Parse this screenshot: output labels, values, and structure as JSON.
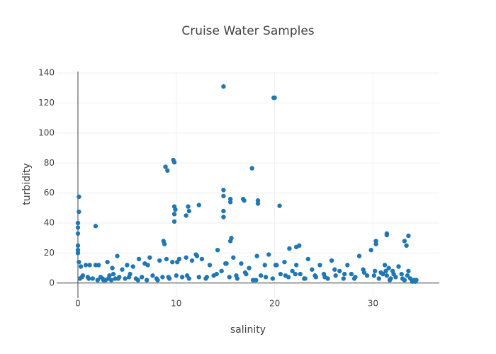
{
  "chart_data": {
    "type": "scatter",
    "title": "Cruise Water Samples",
    "x_label": "salinity",
    "y_label": "turbidity",
    "color": "#1f77b4",
    "grid": true,
    "xlim": [
      -2.16,
      36.74
    ],
    "ylim": [
      -10,
      141
    ],
    "xticks": [
      0,
      10,
      20,
      30
    ],
    "yticks": [
      0,
      20,
      40,
      60,
      80,
      100,
      120,
      140
    ],
    "x": [
      14.8,
      19.9,
      20.0,
      9.7,
      9.8,
      8.9,
      9.1,
      17.7,
      0.1,
      0.1,
      0.0,
      0.0,
      0.0,
      1.8,
      14.8,
      14.8,
      15.5,
      15.5,
      16.8,
      16.9,
      18.3,
      18.3,
      20.5,
      9.8,
      9.9,
      9.8,
      9.8,
      11.2,
      11.3,
      11.0,
      12.3,
      14.8,
      14.8,
      31.4,
      31.4,
      33.6,
      33.2,
      33.4,
      30.3,
      30.3,
      15.6,
      15.5,
      22.5,
      22.2,
      21.5,
      8.7,
      8.8,
      0.0,
      0.0,
      0.0,
      0.1,
      0.2,
      0.3,
      0.5,
      0.8,
      1,
      1.2,
      1.5,
      1.8,
      2,
      2.3,
      2.5,
      2.8,
      3,
      3.2,
      3.4,
      3.6,
      3.8,
      4,
      4.2,
      4.5,
      4.8,
      5,
      5.3,
      5.6,
      5.9,
      6.2,
      6.5,
      6.8,
      7,
      7.3,
      7.6,
      8,
      8.3,
      8.6,
      9,
      9.3,
      9.6,
      10,
      10.3,
      10.6,
      11,
      11.3,
      11.6,
      12,
      12.3,
      12.6,
      13,
      13.4,
      13.8,
      14.2,
      14.6,
      15,
      15.4,
      15.8,
      16.2,
      16.6,
      17,
      17.4,
      17.8,
      18.2,
      18.6,
      19,
      19.4,
      19.8,
      20.2,
      20.6,
      21,
      21.4,
      21.8,
      22.2,
      22.6,
      23,
      23.4,
      23.8,
      24.2,
      24.6,
      25,
      25.4,
      25.8,
      26.2,
      26.6,
      27,
      27.4,
      27.8,
      28.2,
      28.6,
      29,
      29.4,
      29.8,
      30.2,
      30.6,
      31,
      31.2,
      31.4,
      31.6,
      31.8,
      32,
      32.3,
      32.6,
      32.9,
      33.2,
      33.5,
      33.8,
      34,
      34.2,
      34.4,
      0.4,
      1.1,
      2.1,
      2.6,
      3.1,
      3.5,
      4.1,
      5.2,
      6.1,
      7.1,
      8.1,
      9.2,
      10.1,
      11.1,
      12.1,
      13.1,
      14.1,
      15.1,
      16.1,
      17.1,
      18.1,
      19.1,
      20.1,
      21.1,
      22.1,
      23.1,
      24.1,
      25.1,
      26.1,
      27.1,
      28.1,
      29.1,
      30.1,
      30.8,
      31.3,
      31.7,
      32.1,
      33,
      33.6,
      34.3
    ],
    "y": [
      131,
      123.5,
      123.5,
      82,
      80.5,
      77.5,
      75,
      76.5,
      57.5,
      47.5,
      40,
      37,
      33,
      38,
      62,
      58,
      56,
      54,
      56,
      55,
      55,
      53,
      51.5,
      51,
      49,
      46,
      41,
      51,
      48,
      45,
      52,
      48,
      44,
      33,
      32,
      31.5,
      28,
      25,
      28,
      26,
      30,
      28,
      25,
      24,
      23,
      28,
      26,
      25,
      22,
      20,
      14,
      3,
      11,
      5,
      12,
      4,
      12,
      3,
      12,
      2,
      4,
      3,
      2,
      14,
      5,
      2,
      6,
      3,
      18,
      4,
      9,
      3,
      12,
      6,
      11,
      3,
      16,
      4,
      13,
      2,
      17,
      5,
      3,
      15,
      4,
      16,
      3,
      14,
      5,
      16,
      4,
      17,
      3,
      15,
      19,
      4,
      16,
      3,
      12,
      5,
      22,
      8,
      13,
      4,
      17,
      3,
      13,
      7,
      10,
      2,
      18,
      5,
      12,
      19,
      3,
      12,
      6,
      14,
      4,
      8,
      12,
      6,
      3,
      16,
      9,
      4,
      12,
      6,
      3,
      15,
      5,
      8,
      3,
      12,
      6,
      4,
      18,
      9,
      5,
      22,
      8,
      3,
      6,
      12,
      5,
      10,
      3,
      8,
      4,
      11,
      6,
      2,
      5,
      3,
      1,
      2,
      2,
      4,
      3,
      12,
      2,
      3,
      10,
      3,
      4,
      2,
      12,
      2,
      4,
      14,
      5,
      18,
      4,
      6,
      13,
      5,
      6,
      2,
      4,
      12,
      5,
      6,
      3,
      5,
      4,
      9,
      6,
      3,
      7,
      5,
      7,
      8,
      2,
      6,
      3,
      8,
      1
    ]
  }
}
